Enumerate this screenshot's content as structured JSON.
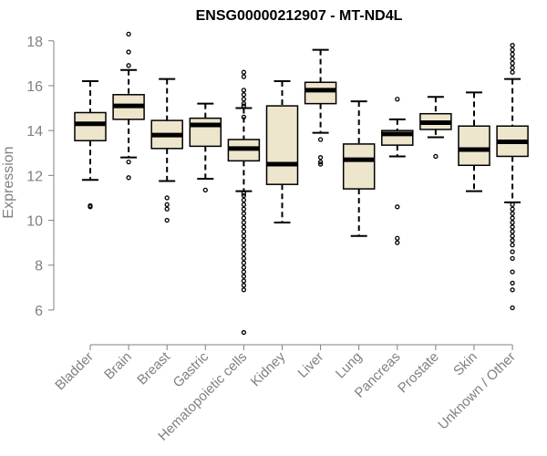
{
  "chart_data": {
    "type": "box",
    "title": "ENSG00000212907 - MT-ND4L",
    "xlabel": "",
    "ylabel": "Expression",
    "ylim": [
      4.9,
      18.6
    ],
    "yticks": [
      6,
      8,
      10,
      12,
      14,
      16,
      18
    ],
    "box_fill": "#ede6cc",
    "box_stroke": "#000000",
    "axis_color": "#808080",
    "categories": [
      "Bladder",
      "Brain",
      "Breast",
      "Gastric",
      "Hematopoietic cells",
      "Kidney",
      "Liver",
      "Lung",
      "Pancreas",
      "Prostate",
      "Skin",
      "Unknown / Other"
    ],
    "boxes": [
      {
        "whisker_low": 11.8,
        "q1": 13.55,
        "median": 14.3,
        "q3": 14.8,
        "whisker_high": 16.2,
        "outliers": [
          10.6,
          10.65
        ]
      },
      {
        "whisker_low": 12.8,
        "q1": 14.5,
        "median": 15.1,
        "q3": 15.6,
        "whisker_high": 16.7,
        "outliers": [
          18.3,
          17.5,
          16.9,
          12.6,
          11.9
        ]
      },
      {
        "whisker_low": 11.75,
        "q1": 13.2,
        "median": 13.8,
        "q3": 14.45,
        "whisker_high": 16.3,
        "outliers": [
          11.0,
          10.7,
          10.5,
          10.0
        ]
      },
      {
        "whisker_low": 11.85,
        "q1": 13.3,
        "median": 14.25,
        "q3": 14.55,
        "whisker_high": 15.2,
        "outliers": [
          11.35
        ]
      },
      {
        "whisker_low": 11.3,
        "q1": 12.65,
        "median": 13.2,
        "q3": 13.6,
        "whisker_high": 15.0,
        "outliers": [
          16.6,
          16.4,
          15.8,
          15.6,
          15.4,
          15.2,
          15.1,
          14.6,
          11.2,
          11.1,
          10.9,
          10.7,
          10.5,
          10.3,
          10.1,
          9.9,
          9.7,
          9.5,
          9.3,
          9.1,
          8.9,
          8.7,
          8.5,
          8.3,
          8.1,
          7.9,
          7.7,
          7.5,
          7.3,
          7.1,
          6.9,
          5.0
        ]
      },
      {
        "whisker_low": 9.9,
        "q1": 11.6,
        "median": 12.5,
        "q3": 15.1,
        "whisker_high": 16.2,
        "outliers": []
      },
      {
        "whisker_low": 13.9,
        "q1": 15.2,
        "median": 15.8,
        "q3": 16.15,
        "whisker_high": 17.6,
        "outliers": [
          13.6,
          12.8,
          12.6,
          12.5
        ]
      },
      {
        "whisker_low": 9.3,
        "q1": 11.4,
        "median": 12.7,
        "q3": 13.4,
        "whisker_high": 15.3,
        "outliers": []
      },
      {
        "whisker_low": 12.85,
        "q1": 13.35,
        "median": 13.85,
        "q3": 14.0,
        "whisker_high": 14.5,
        "outliers": [
          15.4,
          10.6,
          9.2,
          9.0
        ]
      },
      {
        "whisker_low": 13.7,
        "q1": 14.05,
        "median": 14.35,
        "q3": 14.75,
        "whisker_high": 15.5,
        "outliers": [
          12.85
        ]
      },
      {
        "whisker_low": 11.3,
        "q1": 12.45,
        "median": 13.15,
        "q3": 14.2,
        "whisker_high": 15.7,
        "outliers": []
      },
      {
        "whisker_low": 10.8,
        "q1": 12.85,
        "median": 13.5,
        "q3": 14.2,
        "whisker_high": 16.3,
        "outliers": [
          17.8,
          17.6,
          17.4,
          17.2,
          17.0,
          16.8,
          16.6,
          10.7,
          10.5,
          10.3,
          10.1,
          9.9,
          9.7,
          9.5,
          9.3,
          9.1,
          8.9,
          8.6,
          8.3,
          7.7,
          7.2,
          6.9,
          6.1
        ]
      }
    ]
  }
}
